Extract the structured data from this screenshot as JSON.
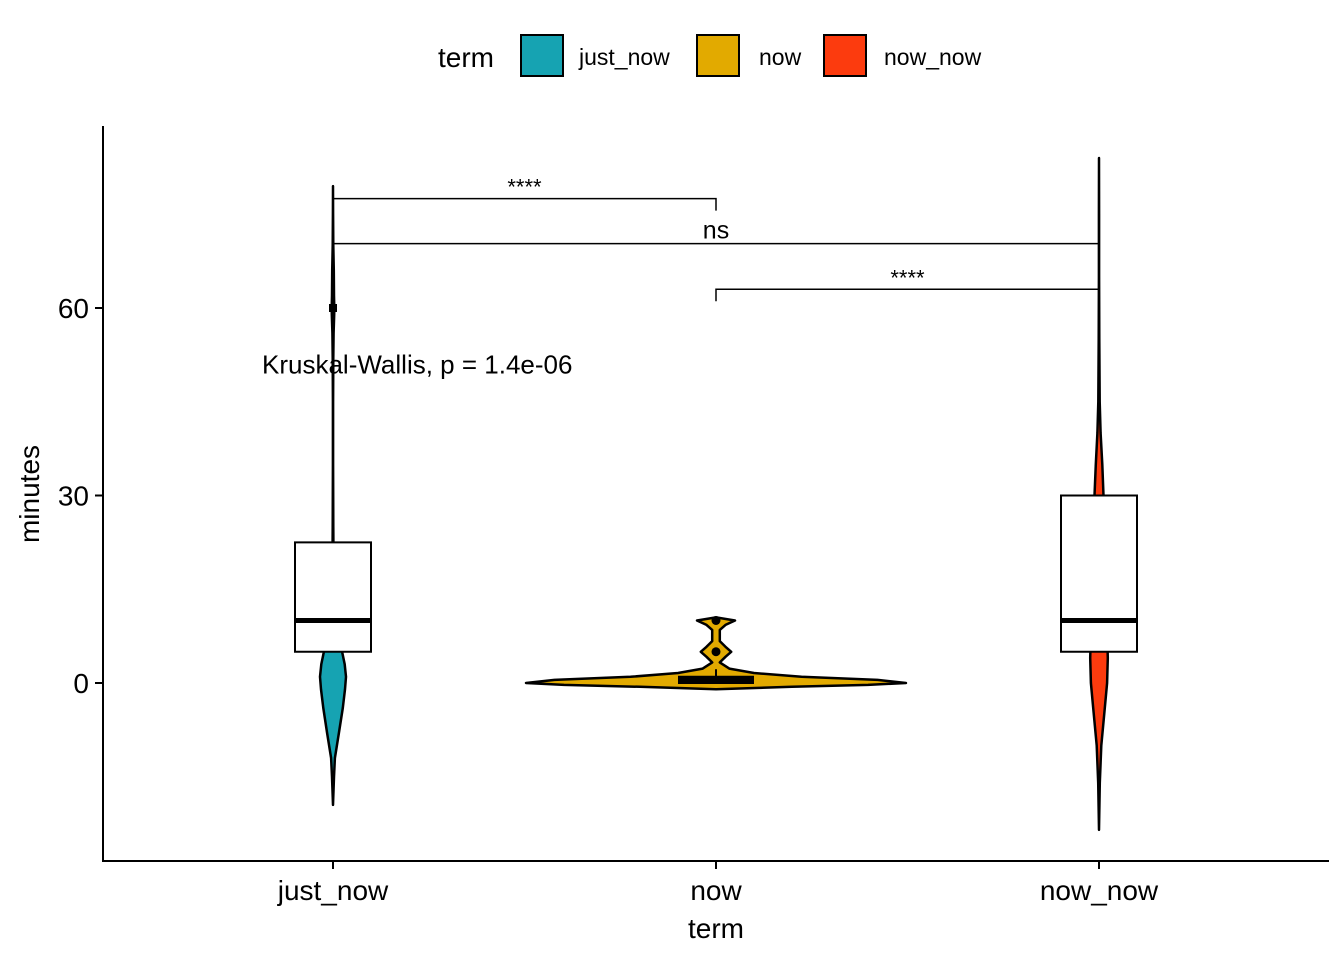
{
  "chart_data": {
    "type": "violin",
    "xlabel": "term",
    "ylabel": "minutes",
    "categories": [
      "just_now",
      "now",
      "now_now"
    ],
    "ylim": [
      -28,
      89
    ],
    "yticks": [
      0,
      30,
      60
    ],
    "grid": false,
    "legend": {
      "title": "term",
      "position": "top",
      "entries": [
        {
          "label": "just_now",
          "color": "#16A3B2"
        },
        {
          "label": "now",
          "color": "#E2AA00"
        },
        {
          "label": "now_now",
          "color": "#FC3B0E"
        }
      ]
    },
    "series": [
      {
        "category": "just_now",
        "color": "#16A3B2",
        "box": {
          "q1": 5,
          "median": 10,
          "q3": 22.5
        },
        "violin_range": [
          -19.5,
          79.5
        ],
        "violin_points": [
          [
            -19.5,
            0
          ],
          [
            -15,
            0.08
          ],
          [
            -12,
            0.15
          ],
          [
            -8,
            0.45
          ],
          [
            -4,
            0.75
          ],
          [
            -1,
            0.92
          ],
          [
            1,
            1.0
          ],
          [
            3,
            0.9
          ],
          [
            6,
            0.6
          ],
          [
            10,
            0.25
          ],
          [
            14,
            0.08
          ],
          [
            20,
            0.04
          ],
          [
            25,
            0.02
          ],
          [
            35,
            0.01
          ],
          [
            45,
            0.01
          ],
          [
            52,
            0.02
          ],
          [
            56,
            0.05
          ],
          [
            59,
            0.09
          ],
          [
            60,
            0.1
          ],
          [
            62,
            0.08
          ],
          [
            66,
            0.06
          ],
          [
            70,
            0.02
          ],
          [
            75,
            0.01
          ],
          [
            79.5,
            0
          ]
        ]
      },
      {
        "category": "now",
        "color": "#E2AA00",
        "box": {
          "q1": 0,
          "median": 0.5,
          "q3": 1
        },
        "violin_range": [
          -1,
          10.5
        ],
        "violin_points": [
          [
            -1,
            0
          ],
          [
            -0.6,
            0.4
          ],
          [
            -0.3,
            0.8
          ],
          [
            0,
            1.0
          ],
          [
            0.5,
            0.85
          ],
          [
            1,
            0.45
          ],
          [
            1.6,
            0.2
          ],
          [
            2.3,
            0.07
          ],
          [
            3.3,
            0.02
          ],
          [
            4.2,
            0.05
          ],
          [
            5,
            0.08
          ],
          [
            5.8,
            0.05
          ],
          [
            6.7,
            0.02
          ],
          [
            8.5,
            0.02
          ],
          [
            9.3,
            0.05
          ],
          [
            10,
            0.1
          ],
          [
            10.5,
            0
          ]
        ]
      },
      {
        "category": "now_now",
        "color": "#FC3B0E",
        "box": {
          "q1": 5,
          "median": 10,
          "q3": 30
        },
        "violin_range": [
          -23.5,
          84
        ],
        "violin_points": [
          [
            -23.5,
            0
          ],
          [
            -16,
            0.06
          ],
          [
            -10,
            0.18
          ],
          [
            -4,
            0.45
          ],
          [
            0,
            0.62
          ],
          [
            4,
            0.68
          ],
          [
            10,
            0.6
          ],
          [
            18,
            0.45
          ],
          [
            26,
            0.38
          ],
          [
            30,
            0.35
          ],
          [
            35,
            0.25
          ],
          [
            40,
            0.12
          ],
          [
            45,
            0.05
          ],
          [
            55,
            0.02
          ],
          [
            65,
            0.01
          ],
          [
            75,
            0.01
          ],
          [
            84,
            0
          ]
        ]
      }
    ],
    "comparisons": [
      {
        "from": "just_now",
        "to": "now",
        "label": "****",
        "y": 77.5
      },
      {
        "from": "just_now",
        "to": "now_now",
        "label": "ns",
        "y": 70.3
      },
      {
        "from": "now",
        "to": "now_now",
        "label": "****",
        "y": 63
      }
    ],
    "annotation": {
      "text": "Kruskal-Wallis, p = 1.4e-06",
      "x": "just_now",
      "y": 51
    }
  }
}
